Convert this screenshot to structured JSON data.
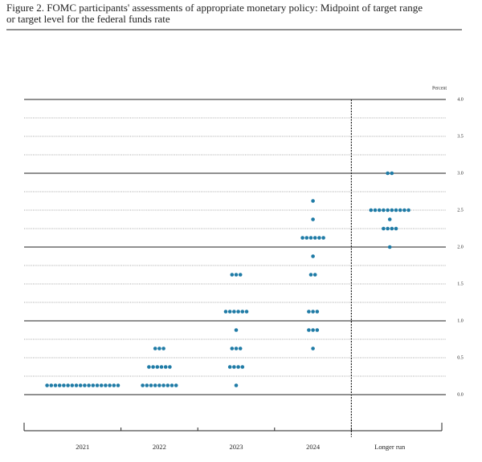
{
  "chart_data": {
    "type": "dot",
    "title": [
      "Figure 2.  FOMC participants' assessments of appropriate monetary policy: Midpoint of target range",
      "or target level for the federal funds rate"
    ],
    "y_label": "Percent",
    "categories": [
      "2021",
      "2022",
      "2023",
      "2024",
      "Longer run"
    ],
    "values": [
      [
        0.125,
        0.125,
        0.125,
        0.125,
        0.125,
        0.125,
        0.125,
        0.125,
        0.125,
        0.125,
        0.125,
        0.125,
        0.125,
        0.125,
        0.125,
        0.125,
        0.125,
        0.125
      ],
      [
        0.125,
        0.125,
        0.125,
        0.125,
        0.125,
        0.125,
        0.125,
        0.125,
        0.125,
        0.375,
        0.375,
        0.375,
        0.375,
        0.375,
        0.375,
        0.625,
        0.625,
        0.625
      ],
      [
        0.125,
        0.375,
        0.375,
        0.375,
        0.375,
        0.625,
        0.625,
        0.625,
        0.875,
        1.125,
        1.125,
        1.125,
        1.125,
        1.125,
        1.125,
        1.625,
        1.625,
        1.625
      ],
      [
        0.625,
        0.875,
        0.875,
        0.875,
        1.125,
        1.125,
        1.125,
        1.625,
        1.625,
        1.875,
        2.125,
        2.125,
        2.125,
        2.125,
        2.125,
        2.125,
        2.375,
        2.625
      ],
      [
        2.0,
        2.25,
        2.25,
        2.25,
        2.25,
        2.375,
        2.5,
        2.5,
        2.5,
        2.5,
        2.5,
        2.5,
        2.5,
        2.5,
        2.5,
        2.5,
        3.0,
        3.0
      ]
    ],
    "color": "#1f7ba6",
    "ylim": [
      0,
      4
    ],
    "yticks": [
      {
        "value": 0,
        "label": "0.0"
      },
      {
        "value": 0.5,
        "label": "0.5"
      },
      {
        "value": 1,
        "label": "1.0"
      },
      {
        "value": 1.5,
        "label": "1.5"
      },
      {
        "value": 2,
        "label": "2.0"
      },
      {
        "value": 2.5,
        "label": "2.5"
      },
      {
        "value": 3,
        "label": "3.0"
      },
      {
        "value": 3.5,
        "label": "3.5"
      },
      {
        "value": 4,
        "label": "4.0"
      }
    ],
    "minor_yticks": [
      0.25,
      0.75,
      1.25,
      1.75,
      2.25,
      2.75,
      3.25,
      3.75
    ],
    "grid": true
  }
}
